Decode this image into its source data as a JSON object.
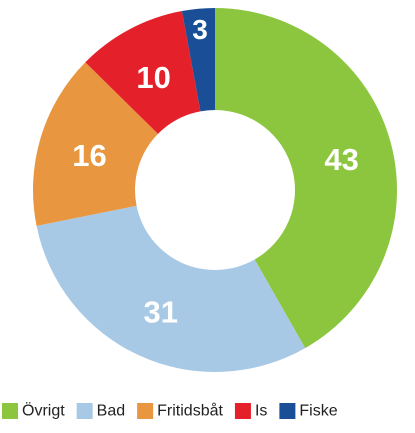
{
  "chart_data": {
    "type": "donut",
    "categories": [
      "Övrigt",
      "Bad",
      "Fritidsbåt",
      "Is",
      "Fiske"
    ],
    "values": [
      43,
      31,
      16,
      10,
      3
    ],
    "colors": [
      "#8cc63e",
      "#a8c9e5",
      "#e8963f",
      "#e4202a",
      "#1a4f98"
    ]
  }
}
